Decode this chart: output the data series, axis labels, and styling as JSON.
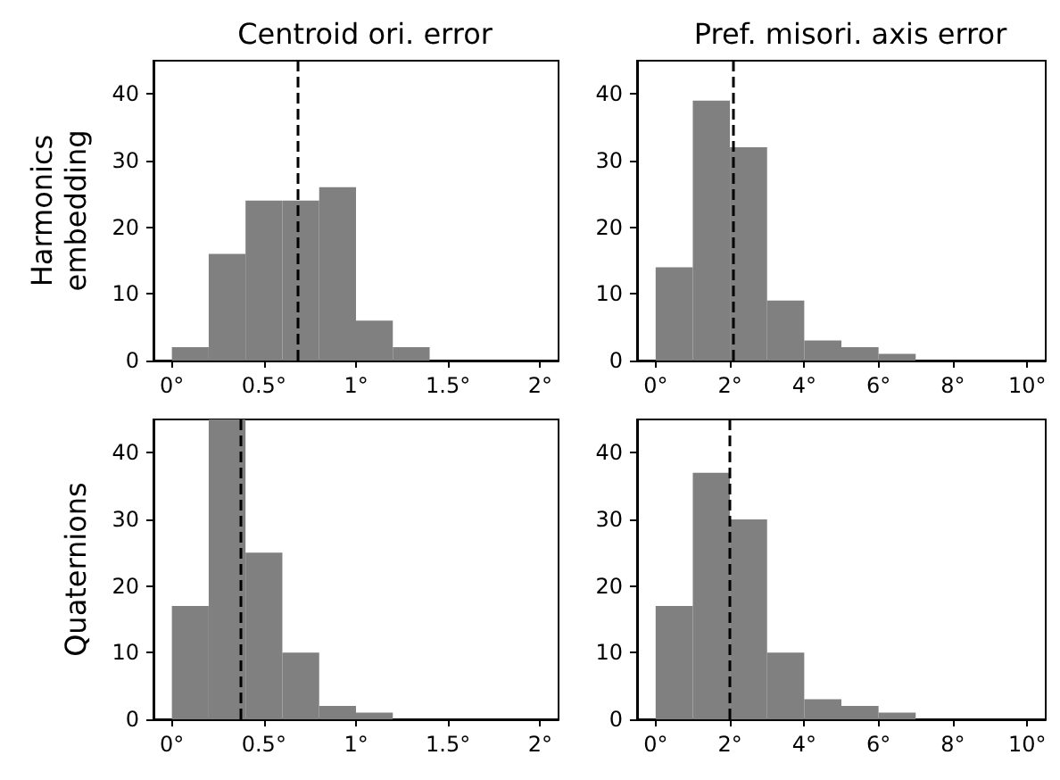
{
  "chart_data": [
    {
      "type": "histogram",
      "title": "Centroid ori. error",
      "ylabel": "Harmonics\nembedding",
      "bins": [
        0,
        0.2,
        0.4,
        0.6,
        0.8,
        1.0,
        1.2,
        1.4,
        1.6,
        1.8,
        2.0
      ],
      "values": [
        2,
        16,
        24,
        24,
        26,
        6,
        2,
        0,
        0,
        0
      ],
      "color": "#808080",
      "xlim": [
        -0.1,
        2.1
      ],
      "xticks": [
        {
          "value": 0,
          "label": "0°"
        },
        {
          "value": 0.5,
          "label": "0.5°"
        },
        {
          "value": 1,
          "label": "1°"
        },
        {
          "value": 1.5,
          "label": "1.5°"
        },
        {
          "value": 2,
          "label": "2°"
        }
      ],
      "ylim": [
        0,
        45
      ],
      "yticks": [
        0,
        10,
        20,
        30,
        40
      ],
      "ref_lines": [
        {
          "axis": "x",
          "value": 0.68,
          "color": "#000000",
          "line_style": "dashed"
        }
      ],
      "grid": false
    },
    {
      "type": "histogram",
      "title": "Pref. misori. axis error",
      "bins": [
        0,
        1,
        2,
        3,
        4,
        5,
        6,
        7,
        8,
        9,
        10
      ],
      "values": [
        14,
        39,
        32,
        9,
        3,
        2,
        1,
        0,
        0,
        0
      ],
      "color": "#808080",
      "xlim": [
        -0.5,
        10.5
      ],
      "xticks": [
        {
          "value": 0,
          "label": "0°"
        },
        {
          "value": 2,
          "label": "2°"
        },
        {
          "value": 4,
          "label": "4°"
        },
        {
          "value": 6,
          "label": "6°"
        },
        {
          "value": 8,
          "label": "8°"
        },
        {
          "value": 10,
          "label": "10°"
        }
      ],
      "ylim": [
        0,
        45
      ],
      "yticks": [
        0,
        10,
        20,
        30,
        40
      ],
      "ref_lines": [
        {
          "axis": "x",
          "value": 2.1,
          "color": "#000000",
          "line_style": "dashed"
        }
      ],
      "grid": false
    },
    {
      "type": "histogram",
      "ylabel": "Quaternions",
      "bins": [
        0,
        0.2,
        0.4,
        0.6,
        0.8,
        1.0,
        1.2,
        1.4,
        1.6,
        1.8,
        2.0
      ],
      "values": [
        17,
        45,
        25,
        10,
        2,
        1,
        0,
        0,
        0,
        0
      ],
      "color": "#808080",
      "xlim": [
        -0.1,
        2.1
      ],
      "xticks": [
        {
          "value": 0,
          "label": "0°"
        },
        {
          "value": 0.5,
          "label": "0.5°"
        },
        {
          "value": 1,
          "label": "1°"
        },
        {
          "value": 1.5,
          "label": "1.5°"
        },
        {
          "value": 2,
          "label": "2°"
        }
      ],
      "ylim": [
        0,
        45
      ],
      "yticks": [
        0,
        10,
        20,
        30,
        40
      ],
      "ref_lines": [
        {
          "axis": "x",
          "value": 0.37,
          "color": "#000000",
          "line_style": "dashed"
        }
      ],
      "grid": false
    },
    {
      "type": "histogram",
      "bins": [
        0,
        1,
        2,
        3,
        4,
        5,
        6,
        7,
        8,
        9,
        10
      ],
      "values": [
        17,
        37,
        30,
        10,
        3,
        2,
        1,
        0,
        0,
        0
      ],
      "color": "#808080",
      "xlim": [
        -0.5,
        10.5
      ],
      "xticks": [
        {
          "value": 0,
          "label": "0°"
        },
        {
          "value": 2,
          "label": "2°"
        },
        {
          "value": 4,
          "label": "4°"
        },
        {
          "value": 6,
          "label": "6°"
        },
        {
          "value": 8,
          "label": "8°"
        },
        {
          "value": 10,
          "label": "10°"
        }
      ],
      "ylim": [
        0,
        45
      ],
      "yticks": [
        0,
        10,
        20,
        30,
        40
      ],
      "ref_lines": [
        {
          "axis": "x",
          "value": 2.0,
          "color": "#000000",
          "line_style": "dashed"
        }
      ],
      "grid": false
    }
  ]
}
